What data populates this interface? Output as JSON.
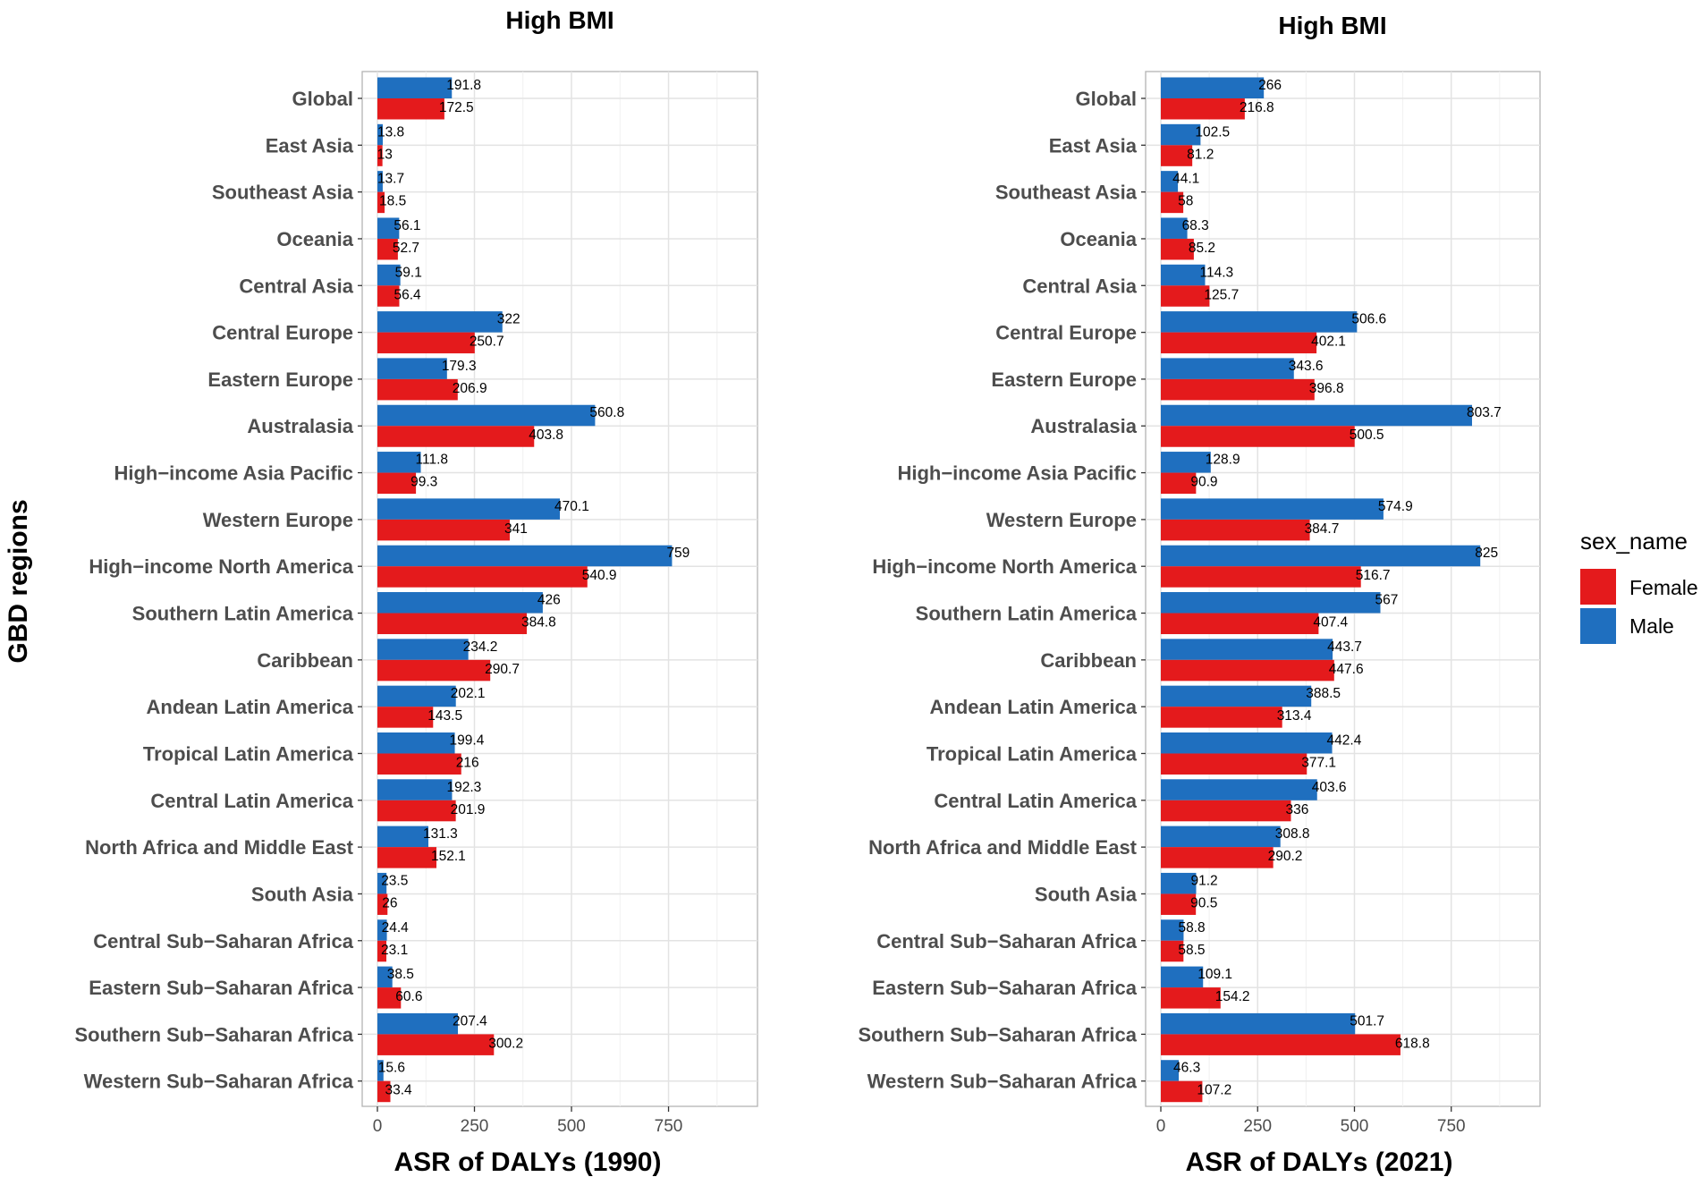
{
  "y_axis_title": "GBD regions",
  "legend": {
    "title": "sex_name",
    "entries": [
      {
        "label": "Female",
        "color": "#e41a1c"
      },
      {
        "label": "Male",
        "color": "#1f6fbf"
      }
    ]
  },
  "chart_data": [
    {
      "type": "bar",
      "orientation": "horizontal",
      "title": "High BMI",
      "xlabel": "ASR of DALYs (1990)",
      "ylabel": "GBD regions",
      "xlim": [
        0,
        940
      ],
      "xticks": [
        0,
        250,
        500,
        750
      ],
      "grid": true,
      "legend_position": "right",
      "categories": [
        "Global",
        "East Asia",
        "Southeast Asia",
        "Oceania",
        "Central Asia",
        "Central Europe",
        "Eastern Europe",
        "Australasia",
        "High−income Asia Pacific",
        "Western Europe",
        "High−income North America",
        "Southern Latin America",
        "Caribbean",
        "Andean Latin America",
        "Tropical Latin America",
        "Central Latin America",
        "North Africa and Middle East",
        "South Asia",
        "Central Sub−Saharan Africa",
        "Eastern Sub−Saharan Africa",
        "Southern Sub−Saharan Africa",
        "Western Sub−Saharan Africa"
      ],
      "series": [
        {
          "name": "Male",
          "color": "#1f6fbf",
          "values": [
            191.8,
            13.8,
            13.7,
            56.1,
            59.1,
            322,
            179.3,
            560.8,
            111.8,
            470.1,
            759,
            426,
            234.2,
            202.1,
            199.4,
            192.3,
            131.3,
            23.5,
            24.4,
            38.5,
            207.4,
            15.6
          ],
          "labels": [
            "191.8",
            "13.8",
            "13.7",
            "56.1",
            "59.1",
            "322",
            "179.3",
            "560.8",
            "111.8",
            "470.1",
            "759",
            "426",
            "234.2",
            "202.1",
            "199.4",
            "192.3",
            "131.3",
            "23.5",
            "24.4",
            "38.5",
            "207.4",
            "15.6"
          ]
        },
        {
          "name": "Female",
          "color": "#e41a1c",
          "values": [
            172.5,
            13,
            18.5,
            52.7,
            56.4,
            250.7,
            206.9,
            403.8,
            99.3,
            341,
            540.9,
            384.8,
            290.7,
            143.5,
            216,
            201.9,
            152.1,
            26,
            23.1,
            60.6,
            300.2,
            33.4
          ],
          "labels": [
            "172.5",
            "13",
            "18.5",
            "52.7",
            "56.4",
            "250.7",
            "206.9",
            "403.8",
            "99.3",
            "341",
            "540.9",
            "384.8",
            "290.7",
            "143.5",
            "216",
            "201.9",
            "152.1",
            "26",
            "23.1",
            "60.6",
            "300.2",
            "33.4"
          ]
        }
      ]
    },
    {
      "type": "bar",
      "orientation": "horizontal",
      "title": "High BMI",
      "xlabel": "ASR of DALYs (2021)",
      "ylabel": "",
      "xlim": [
        0,
        940
      ],
      "xticks": [
        0,
        250,
        500,
        750
      ],
      "grid": true,
      "legend_position": "right",
      "categories": [
        "Global",
        "East Asia",
        "Southeast Asia",
        "Oceania",
        "Central Asia",
        "Central Europe",
        "Eastern Europe",
        "Australasia",
        "High−income Asia Pacific",
        "Western Europe",
        "High−income North America",
        "Southern Latin America",
        "Caribbean",
        "Andean Latin America",
        "Tropical Latin America",
        "Central Latin America",
        "North Africa and Middle East",
        "South Asia",
        "Central Sub−Saharan Africa",
        "Eastern Sub−Saharan Africa",
        "Southern Sub−Saharan Africa",
        "Western Sub−Saharan Africa"
      ],
      "series": [
        {
          "name": "Male",
          "color": "#1f6fbf",
          "values": [
            266,
            102.5,
            44.1,
            68.3,
            114.3,
            506.6,
            343.6,
            803.7,
            128.9,
            574.9,
            825,
            567,
            443.7,
            388.5,
            442.4,
            403.6,
            308.8,
            91.2,
            58.8,
            109.1,
            501.7,
            46.3
          ],
          "labels": [
            "266",
            "102.5",
            "44.1",
            "68.3",
            "114.3",
            "506.6",
            "343.6",
            "803.7",
            "128.9",
            "574.9",
            "825",
            "567",
            "443.7",
            "388.5",
            "442.4",
            "403.6",
            "308.8",
            "91.2",
            "58.8",
            "109.1",
            "501.7",
            "46.3"
          ]
        },
        {
          "name": "Female",
          "color": "#e41a1c",
          "values": [
            216.8,
            81.2,
            58,
            85.2,
            125.7,
            402.1,
            396.8,
            500.5,
            90.9,
            384.7,
            516.7,
            407.4,
            447.6,
            313.4,
            377.1,
            336,
            290.2,
            90.5,
            58.5,
            154.2,
            618.8,
            107.2
          ],
          "labels": [
            "216.8",
            "81.2",
            "58",
            "85.2",
            "125.7",
            "402.1",
            "396.8",
            "500.5",
            "90.9",
            "384.7",
            "516.7",
            "407.4",
            "447.6",
            "313.4",
            "377.1",
            "336",
            "290.2",
            "90.5",
            "58.5",
            "154.2",
            "618.8",
            "107.2"
          ]
        }
      ]
    }
  ]
}
